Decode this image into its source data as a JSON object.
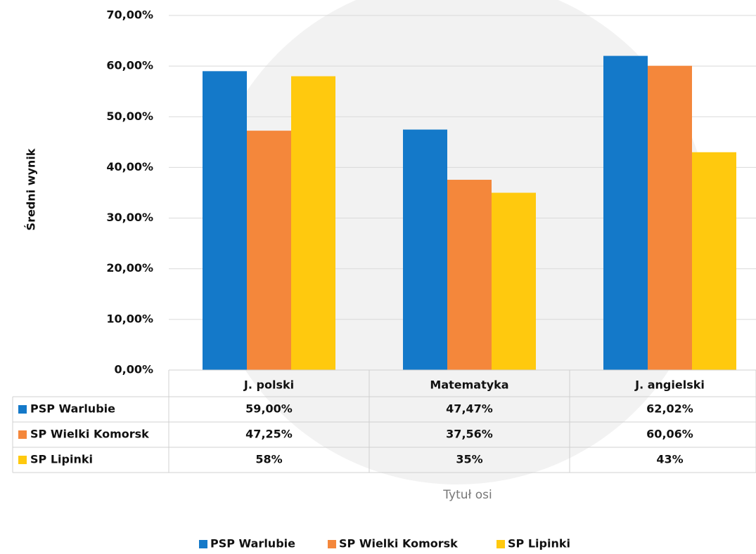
{
  "chart_data": {
    "type": "bar",
    "y_axis_title": "Średni wynik",
    "x_axis_title": "Tytuł osi",
    "categories": [
      "J. polski",
      "Matematyka",
      "J. angielski"
    ],
    "series": [
      {
        "name": "PSP Warlubie",
        "color": "#1479c9",
        "values": [
          59,
          47.47,
          62.02
        ],
        "value_labels": [
          "59,00%",
          "47,47%",
          "62,02%"
        ]
      },
      {
        "name": "SP Wielki Komorsk",
        "color": "#f4873b",
        "values": [
          47.25,
          37.56,
          60.06
        ],
        "value_labels": [
          "47,25%",
          "37,56%",
          "60,06%"
        ]
      },
      {
        "name": "SP Lipinki",
        "color": "#ffc90e",
        "values": [
          58,
          35,
          43
        ],
        "value_labels": [
          "58%",
          "35%",
          "43%"
        ]
      }
    ],
    "ylim": [
      0,
      70
    ],
    "yticks": [
      {
        "value": 0,
        "label": "0,00%"
      },
      {
        "value": 10,
        "label": "10,00%"
      },
      {
        "value": 20,
        "label": "20,00%"
      },
      {
        "value": 30,
        "label": "30,00%"
      },
      {
        "value": 40,
        "label": "40,00%"
      },
      {
        "value": 50,
        "label": "50,00%"
      },
      {
        "value": 60,
        "label": "60,00%"
      },
      {
        "value": 70,
        "label": "70,00%"
      }
    ],
    "grid": true,
    "legend": "bottom"
  }
}
